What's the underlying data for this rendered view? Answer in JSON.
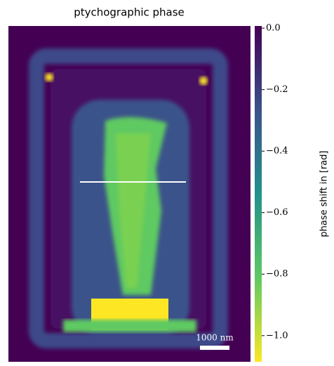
{
  "chart_data": {
    "type": "image",
    "title": "ptychographic phase",
    "colorbar_label": "phase shift in [rad]",
    "scale_bar_label": "1000 nm",
    "colormap": "viridis",
    "reverse_colorbar": true,
    "clim": [
      -1.085,
      0.007
    ],
    "cticks": [
      {
        "value": 0,
        "label": "0.0"
      },
      {
        "value": -0.2,
        "label": "−0.2"
      },
      {
        "value": -0.4,
        "label": "−0.4"
      },
      {
        "value": -0.6,
        "label": "−0.6"
      },
      {
        "value": -0.8,
        "label": "−0.8"
      },
      {
        "value": -1.0,
        "label": "−1.0"
      }
    ]
  }
}
